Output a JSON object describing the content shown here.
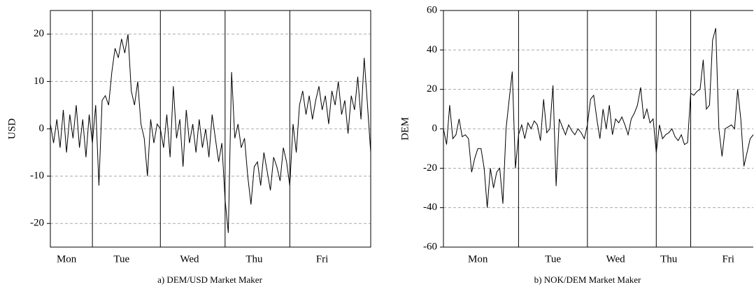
{
  "chart_data": [
    {
      "type": "line",
      "caption": "a) DEM/USD Market Maker",
      "y_label": "USD",
      "color": "#000000",
      "categories": [
        null,
        null,
        null,
        null,
        null,
        "Mon",
        null,
        null,
        null,
        null,
        null,
        null,
        null,
        null,
        null,
        null,
        null,
        null,
        null,
        null,
        null,
        null,
        "Tue",
        null,
        null,
        null,
        null,
        null,
        null,
        null,
        null,
        null,
        null,
        null,
        null,
        null,
        null,
        null,
        null,
        null,
        null,
        null,
        null,
        "Wed",
        null,
        null,
        null,
        null,
        null,
        null,
        null,
        null,
        null,
        null,
        null,
        null,
        null,
        null,
        null,
        null,
        null,
        null,
        null,
        "Thu",
        null,
        null,
        null,
        null,
        null,
        null,
        null,
        null,
        null,
        null,
        null,
        null,
        null,
        null,
        null,
        null,
        null,
        null,
        null,
        null,
        "Fri",
        null,
        null,
        null,
        null,
        null,
        null,
        null,
        null,
        null,
        null,
        null,
        null,
        null,
        null,
        null
      ],
      "day_breaks": [
        13,
        34,
        54,
        74
      ],
      "values": [
        1,
        -3,
        2,
        -4,
        4,
        -5,
        3,
        -2,
        5,
        -4,
        2,
        -6,
        3,
        -3,
        5,
        -12,
        6,
        7,
        5,
        12,
        17,
        15,
        19,
        16,
        20,
        8,
        5,
        10,
        1,
        -2,
        -10,
        2,
        -3,
        1,
        0,
        -4,
        3,
        -6,
        9,
        -2,
        2,
        -8,
        4,
        -3,
        1,
        -5,
        2,
        -4,
        0,
        -6,
        3,
        -2,
        -7,
        -3,
        -15,
        -22,
        12,
        -2,
        1,
        -4,
        -2,
        -10,
        -16,
        -8,
        -7,
        -12,
        -5,
        -9,
        -13,
        -6,
        -8,
        -11,
        -4,
        -7,
        -12,
        1,
        -5,
        5,
        8,
        3,
        7,
        2,
        6,
        9,
        4,
        7,
        1,
        8,
        5,
        10,
        3,
        6,
        -1,
        7,
        4,
        11,
        2,
        15,
        5,
        -5
      ],
      "ylim": [
        -25,
        25
      ],
      "yticks": [
        -20,
        -10,
        0,
        10,
        20
      ],
      "grid": true
    },
    {
      "type": "line",
      "caption": "b) NOK/DEM Market Maker",
      "y_label": "DEM",
      "color": "#000000",
      "categories": [
        null,
        null,
        null,
        null,
        null,
        null,
        null,
        null,
        null,
        null,
        null,
        "Mon",
        null,
        null,
        null,
        null,
        null,
        null,
        null,
        null,
        null,
        null,
        null,
        null,
        null,
        null,
        null,
        null,
        null,
        null,
        null,
        null,
        null,
        null,
        null,
        "Tue",
        null,
        null,
        null,
        null,
        null,
        null,
        null,
        null,
        null,
        null,
        null,
        null,
        null,
        null,
        null,
        null,
        null,
        null,
        null,
        "Wed",
        null,
        null,
        null,
        null,
        null,
        null,
        null,
        null,
        null,
        null,
        null,
        null,
        null,
        null,
        null,
        null,
        "Thu",
        null,
        null,
        null,
        null,
        null,
        null,
        null,
        null,
        null,
        null,
        null,
        null,
        null,
        null,
        null,
        null,
        null,
        null,
        "Fri",
        null,
        null,
        null,
        null,
        null,
        null,
        null,
        null
      ],
      "day_breaks": [
        24,
        46,
        68,
        79
      ],
      "values": [
        0,
        -8,
        12,
        -5,
        -3,
        5,
        -4,
        -3,
        -5,
        -22,
        -15,
        -10,
        -10,
        -20,
        -40,
        -20,
        -30,
        -22,
        -20,
        -38,
        0,
        15,
        29,
        -20,
        -3,
        2,
        -5,
        3,
        0,
        4,
        2,
        -6,
        15,
        -2,
        0,
        22,
        -29,
        5,
        1,
        -3,
        2,
        -1,
        -3,
        0,
        -2,
        -5,
        2,
        15,
        17,
        5,
        -5,
        10,
        0,
        12,
        -3,
        5,
        3,
        6,
        2,
        -3,
        5,
        8,
        12,
        21,
        5,
        10,
        3,
        5,
        -12,
        2,
        -5,
        -3,
        -2,
        0,
        -4,
        -6,
        -3,
        -8,
        -7,
        18,
        17,
        19,
        20,
        35,
        10,
        12,
        45,
        51,
        0,
        -14,
        0,
        1,
        2,
        0,
        20,
        5,
        -19,
        -12,
        -5,
        -3
      ],
      "ylim": [
        -60,
        60
      ],
      "yticks": [
        -60,
        -40,
        -20,
        0,
        20,
        40,
        60
      ],
      "grid": true
    }
  ]
}
